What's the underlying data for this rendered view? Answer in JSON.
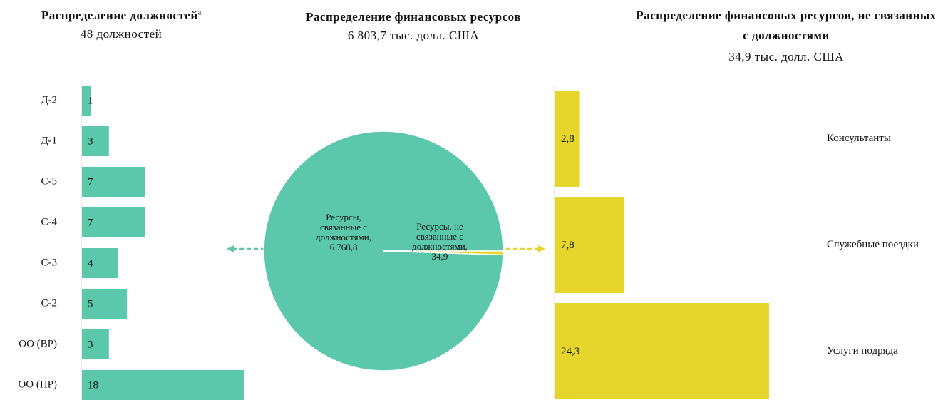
{
  "chart_data": [
    {
      "type": "hbar",
      "title": "Распределение должностей",
      "title_note": "a",
      "subtitle": "48 должностей",
      "categories": [
        "Д-2",
        "Д-1",
        "С-5",
        "С-4",
        "С-3",
        "С-2",
        "ОО (ВР)",
        "ОО (ПР)"
      ],
      "values": [
        1,
        3,
        7,
        7,
        4,
        5,
        3,
        18
      ],
      "color": "#5bc8ac"
    },
    {
      "type": "pie",
      "title": "Распределение финансовых ресурсов",
      "subtitle": "6 803,7 тыс. долл. США",
      "categories": [
        "Ресурсы, связанные с должностями,",
        "Ресурсы, не связанные с должностями,"
      ],
      "values": [
        6768.8,
        34.9
      ],
      "value_labels": [
        "6 768,8",
        "34,9"
      ],
      "colors": [
        "#5bc8ac",
        "#e6d62c"
      ]
    },
    {
      "type": "hbar",
      "title": "Распределение финансовых ресурсов, не связанных с должностями",
      "subtitle": "34,9 тыс. долл. США",
      "categories": [
        "Консультанты",
        "Служебные поездки",
        "Услуги подряда"
      ],
      "values": [
        2.8,
        7.8,
        24.3
      ],
      "value_labels": [
        "2,8",
        "7,8",
        "24,3"
      ],
      "color": "#e6d62c"
    }
  ]
}
